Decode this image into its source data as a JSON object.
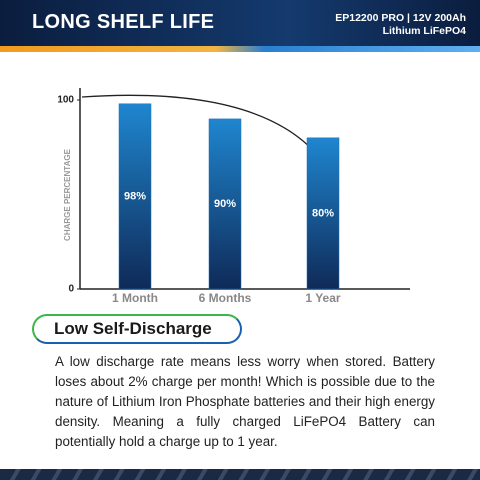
{
  "header": {
    "title": "LONG SHELF LIFE",
    "model": "EP12200 PRO | 12V 200Ah",
    "chemistry": "Lithium LiFePO4"
  },
  "chart_data": {
    "type": "bar",
    "y_label": "CHARGE PERCENTAGE",
    "categories": [
      "1 Month",
      "6 Months",
      "1 Year"
    ],
    "values": [
      98,
      90,
      80
    ],
    "value_labels": [
      "98%",
      "90%",
      "80%"
    ],
    "color": "#1a6fb5",
    "ylim": [
      0,
      100
    ],
    "yticks": [
      0,
      100
    ],
    "grid": false
  },
  "section": {
    "heading": "Low Self-Discharge",
    "body": "A low discharge rate means less worry when stored. Battery loses about 2% charge per month! Which is possible due to the nature of Lithium Iron Phosphate batteries and their high energy density. Meaning a fully charged LiFePO4 Battery can potentially hold a charge up to 1 year."
  }
}
